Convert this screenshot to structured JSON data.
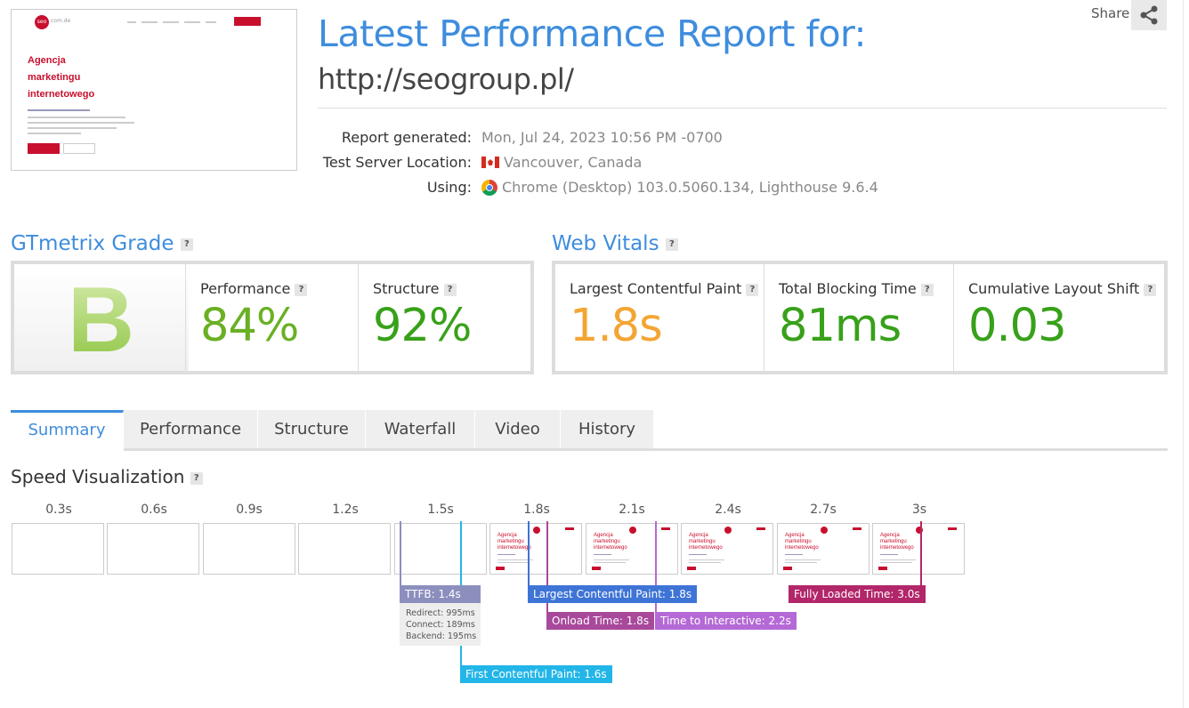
{
  "header": {
    "title": "Latest Performance Report for:",
    "url": "http://seogroup.pl/",
    "share_label": "Share",
    "meta": [
      {
        "label": "Report generated:",
        "value": "Mon, Jul 24, 2023 10:56 PM -0700"
      },
      {
        "label": "Test Server Location:",
        "value": "Vancouver, Canada"
      },
      {
        "label": "Using:",
        "value": "Chrome (Desktop) 103.0.5060.134, Lighthouse 9.6.4"
      }
    ]
  },
  "thumbnail": {
    "heading": [
      "Agencja",
      "marketingu",
      "internetowego"
    ],
    "logo_text": "seo",
    "logo_suffix": "com.de"
  },
  "grade": {
    "title": "GTmetrix Grade",
    "letter": "B",
    "performance_label": "Performance",
    "performance_value": "84%",
    "structure_label": "Structure",
    "structure_value": "92%"
  },
  "vitals": {
    "title": "Web Vitals",
    "lcp_label": "Largest Contentful Paint",
    "lcp_value": "1.8s",
    "tbt_label": "Total Blocking Time",
    "tbt_value": "81ms",
    "cls_label": "Cumulative Layout Shift",
    "cls_value": "0.03"
  },
  "colors": {
    "accent": "#3e8ddd",
    "good": "#6ab024",
    "avg": "#f3a534",
    "good_dark": "#38a11a"
  },
  "help_glyph": "?",
  "tabs": [
    "Summary",
    "Performance",
    "Structure",
    "Waterfall",
    "Video",
    "History"
  ],
  "speed": {
    "title": "Speed Visualization",
    "ticks": [
      "0.3s",
      "0.6s",
      "0.9s",
      "1.2s",
      "1.5s",
      "1.8s",
      "2.1s",
      "2.4s",
      "2.7s",
      "3s"
    ],
    "mini_heading": [
      "Agencja",
      "marketingu",
      "internetowego"
    ],
    "markers": {
      "ttfb": "TTFB: 1.4s",
      "ttfb_details": [
        "Redirect: 995ms",
        "Connect: 189ms",
        "Backend: 195ms"
      ],
      "lcp": "Largest Contentful Paint: 1.8s",
      "onload": "Onload Time: 1.8s",
      "tti": "Time to Interactive: 2.2s",
      "fully_loaded": "Fully Loaded Time: 3.0s",
      "fcp": "First Contentful Paint: 1.6s"
    }
  }
}
